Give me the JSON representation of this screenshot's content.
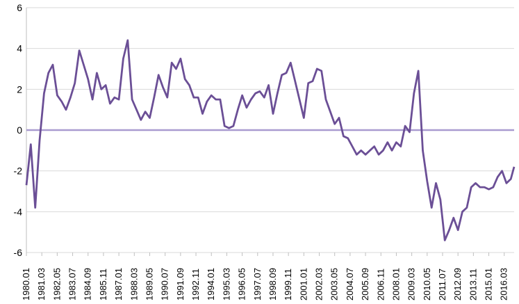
{
  "chart_data": {
    "type": "line",
    "title": "",
    "xlabel": "",
    "ylabel": "",
    "ylim": [
      -6,
      6
    ],
    "yticks": [
      6,
      4,
      2,
      0,
      -2,
      -4,
      -6
    ],
    "grid": "horizontal",
    "legend": "none",
    "line_color": "#6B4F96",
    "zero_line_color": "#A99BD0",
    "grid_color": "#D9D9D9",
    "x_tick_labels": [
      "1980.01",
      "1981.03",
      "1982.05",
      "1983.07",
      "1984.09",
      "1985.11",
      "1987.01",
      "1988.03",
      "1989.05",
      "1990.07",
      "1991.09",
      "1992.11",
      "1994.01",
      "1995.03",
      "1996.05",
      "1997.07",
      "1998.09",
      "1999.11",
      "2001.01",
      "2002.03",
      "2003.05",
      "2004.07",
      "2005.09",
      "2006.11",
      "2008.01",
      "2009.03",
      "2010.05",
      "2011.07",
      "2012.09",
      "2013.11",
      "2015.01",
      "2016.03"
    ],
    "series": [
      {
        "x": [
          "1980.01",
          "1980.05",
          "1980.09",
          "1981.01",
          "1981.05",
          "1981.09",
          "1982.01",
          "1982.05",
          "1982.09",
          "1983.01",
          "1983.05",
          "1983.09",
          "1984.01",
          "1984.05",
          "1984.09",
          "1985.01",
          "1985.05",
          "1985.09",
          "1986.01",
          "1986.05",
          "1986.09",
          "1987.01",
          "1987.05",
          "1987.09",
          "1988.01",
          "1988.05",
          "1988.09",
          "1989.01",
          "1989.05",
          "1989.09",
          "1990.01",
          "1990.05",
          "1990.09",
          "1991.01",
          "1991.05",
          "1991.09",
          "1992.01",
          "1992.05",
          "1992.09",
          "1993.01",
          "1993.05",
          "1993.09",
          "1994.01",
          "1994.05",
          "1994.09",
          "1995.01",
          "1995.05",
          "1995.09",
          "1996.01",
          "1996.05",
          "1996.09",
          "1997.01",
          "1997.05",
          "1997.09",
          "1998.01",
          "1998.05",
          "1998.09",
          "1999.01",
          "1999.05",
          "1999.09",
          "2000.01",
          "2000.05",
          "2000.09",
          "2001.01",
          "2001.05",
          "2001.09",
          "2002.01",
          "2002.05",
          "2002.09",
          "2003.01",
          "2003.05",
          "2003.09",
          "2004.01",
          "2004.05",
          "2004.09",
          "2005.01",
          "2005.05",
          "2005.09",
          "2006.01",
          "2006.05",
          "2006.09",
          "2007.01",
          "2007.05",
          "2007.09",
          "2008.01",
          "2008.05",
          "2008.09",
          "2009.01",
          "2009.05",
          "2009.09",
          "2010.01",
          "2010.05",
          "2010.09",
          "2011.01",
          "2011.05",
          "2011.09",
          "2012.01",
          "2012.05",
          "2012.09",
          "2013.01",
          "2013.05",
          "2013.09",
          "2014.01",
          "2014.05",
          "2014.09",
          "2015.01",
          "2015.05",
          "2015.09",
          "2016.01",
          "2016.05",
          "2016.09",
          "2016.12"
        ],
        "values": [
          -2.7,
          -0.7,
          -3.8,
          -0.5,
          1.8,
          2.8,
          3.2,
          1.7,
          1.4,
          1.0,
          1.6,
          2.3,
          3.9,
          3.2,
          2.5,
          1.5,
          2.8,
          2.0,
          2.2,
          1.3,
          1.6,
          1.5,
          3.5,
          4.4,
          1.5,
          1.0,
          0.5,
          0.9,
          0.6,
          1.6,
          2.7,
          2.1,
          1.6,
          3.3,
          3.0,
          3.5,
          2.5,
          2.2,
          1.6,
          1.6,
          0.8,
          1.4,
          1.7,
          1.5,
          1.5,
          0.2,
          0.1,
          0.2,
          1.0,
          1.7,
          1.1,
          1.5,
          1.8,
          1.9,
          1.6,
          2.2,
          0.8,
          1.8,
          2.7,
          2.8,
          3.3,
          2.4,
          1.5,
          0.6,
          2.3,
          2.4,
          3.0,
          2.9,
          1.5,
          0.9,
          0.3,
          0.6,
          -0.3,
          -0.4,
          -0.8,
          -1.2,
          -1.0,
          -1.2,
          -1.0,
          -0.8,
          -1.2,
          -1.0,
          -0.6,
          -1.0,
          -0.6,
          -0.8,
          0.2,
          -0.1,
          1.8,
          2.9,
          -1.0,
          -2.5,
          -3.8,
          -2.6,
          -3.4,
          -5.4,
          -4.9,
          -4.3,
          -4.9,
          -4.0,
          -3.8,
          -2.8,
          -2.6,
          -2.8,
          -2.8,
          -2.9,
          -2.8,
          -2.3,
          -2.0,
          -2.6,
          -2.4,
          -1.8
        ]
      }
    ]
  }
}
